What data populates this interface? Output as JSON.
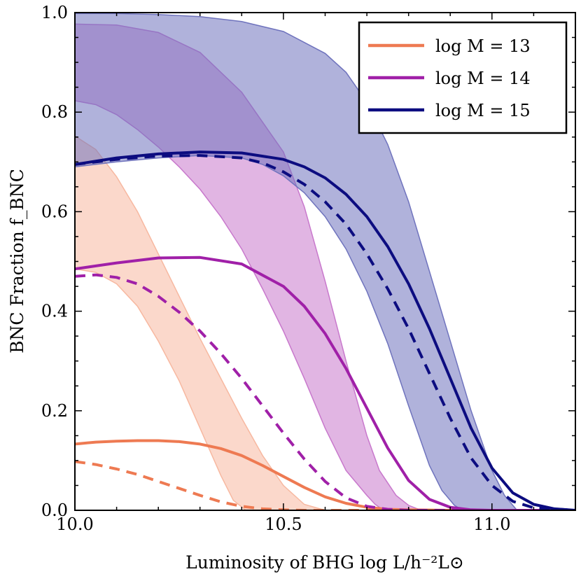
{
  "chart_data": {
    "type": "line",
    "title": "",
    "xlabel": "Luminosity of BHG log L/h⁻²L⊙",
    "ylabel": "BNC Fraction f_BNC",
    "xlim": [
      10.0,
      11.2
    ],
    "ylim": [
      0.0,
      1.0
    ],
    "x_ticks": [
      {
        "value": 10.0,
        "label": "10.0"
      },
      {
        "value": 10.5,
        "label": "10.5"
      },
      {
        "value": 11.0,
        "label": "11.0"
      }
    ],
    "y_ticks": [
      {
        "value": 0.0,
        "label": "0.0"
      },
      {
        "value": 0.2,
        "label": "0.2"
      },
      {
        "value": 0.4,
        "label": "0.4"
      },
      {
        "value": 0.6,
        "label": "0.6"
      },
      {
        "value": 0.8,
        "label": "0.8"
      },
      {
        "value": 1.0,
        "label": "1.0"
      }
    ],
    "legend_position": "top-right",
    "series": [
      {
        "name": "log M = 13",
        "color": "#ee7a52",
        "band_fill": "#f7b8a0",
        "solid": {
          "x": [
            10.0,
            10.05,
            10.1,
            10.15,
            10.2,
            10.25,
            10.3,
            10.35,
            10.4,
            10.45,
            10.5,
            10.55,
            10.6,
            10.65,
            10.7,
            10.75,
            10.8,
            10.9,
            11.0,
            11.1,
            11.2
          ],
          "y": [
            0.133,
            0.137,
            0.139,
            0.14,
            0.14,
            0.138,
            0.133,
            0.124,
            0.11,
            0.09,
            0.068,
            0.046,
            0.027,
            0.014,
            0.006,
            0.002,
            0.001,
            0.0,
            0.0,
            0.0,
            0.0
          ]
        },
        "dashed": {
          "x": [
            10.0,
            10.05,
            10.1,
            10.15,
            10.2,
            10.25,
            10.3,
            10.35,
            10.4,
            10.45,
            10.5,
            10.55,
            10.6,
            10.7,
            10.8,
            11.0,
            11.2
          ],
          "y": [
            0.098,
            0.092,
            0.083,
            0.072,
            0.058,
            0.044,
            0.03,
            0.017,
            0.008,
            0.003,
            0.001,
            0.0,
            0.0,
            0.0,
            0.0,
            0.0,
            0.0
          ]
        },
        "band_upper": {
          "x": [
            10.0,
            10.05,
            10.1,
            10.15,
            10.2,
            10.25,
            10.3,
            10.35,
            10.4,
            10.45,
            10.5,
            10.55,
            10.6
          ],
          "y": [
            0.752,
            0.725,
            0.67,
            0.6,
            0.515,
            0.43,
            0.345,
            0.265,
            0.185,
            0.11,
            0.05,
            0.012,
            0.0
          ]
        },
        "band_lower": {
          "x": [
            10.0,
            10.05,
            10.1,
            10.15,
            10.2,
            10.25,
            10.3,
            10.35,
            10.38,
            10.41
          ],
          "y": [
            0.485,
            0.478,
            0.455,
            0.41,
            0.34,
            0.26,
            0.165,
            0.07,
            0.02,
            0.0
          ]
        }
      },
      {
        "name": "log M = 14",
        "color": "#a020a8",
        "band_fill": "#c878cc",
        "solid": {
          "x": [
            10.0,
            10.1,
            10.2,
            10.3,
            10.4,
            10.5,
            10.55,
            10.6,
            10.65,
            10.7,
            10.75,
            10.8,
            10.85,
            10.9,
            10.95,
            11.0,
            11.1,
            11.2
          ],
          "y": [
            0.485,
            0.497,
            0.507,
            0.508,
            0.495,
            0.45,
            0.41,
            0.355,
            0.285,
            0.205,
            0.125,
            0.06,
            0.022,
            0.006,
            0.001,
            0.0,
            0.0,
            0.0
          ]
        },
        "dashed": {
          "x": [
            10.0,
            10.05,
            10.1,
            10.15,
            10.2,
            10.25,
            10.3,
            10.35,
            10.4,
            10.45,
            10.5,
            10.55,
            10.6,
            10.65,
            10.7,
            10.75,
            10.8,
            10.9,
            11.0,
            11.2
          ],
          "y": [
            0.47,
            0.473,
            0.468,
            0.455,
            0.43,
            0.398,
            0.36,
            0.315,
            0.265,
            0.21,
            0.155,
            0.103,
            0.058,
            0.025,
            0.008,
            0.002,
            0.0,
            0.0,
            0.0,
            0.0
          ]
        },
        "band_upper": {
          "x": [
            10.0,
            10.1,
            10.2,
            10.3,
            10.4,
            10.5,
            10.55,
            10.6,
            10.65,
            10.7,
            10.73,
            10.77,
            10.8,
            10.83
          ],
          "y": [
            0.977,
            0.975,
            0.96,
            0.92,
            0.84,
            0.72,
            0.61,
            0.46,
            0.3,
            0.15,
            0.08,
            0.03,
            0.01,
            0.0
          ]
        },
        "band_lower": {
          "x": [
            10.0,
            10.05,
            10.1,
            10.15,
            10.2,
            10.25,
            10.3,
            10.35,
            10.4,
            10.45,
            10.5,
            10.55,
            10.6,
            10.65,
            10.7,
            10.72,
            10.74
          ],
          "y": [
            0.823,
            0.815,
            0.795,
            0.765,
            0.73,
            0.69,
            0.645,
            0.59,
            0.525,
            0.445,
            0.36,
            0.265,
            0.165,
            0.08,
            0.03,
            0.012,
            0.0
          ]
        }
      },
      {
        "name": "log M = 15",
        "color": "#0c0c80",
        "band_fill": "#6f73bd",
        "solid": {
          "x": [
            10.0,
            10.1,
            10.2,
            10.3,
            10.4,
            10.5,
            10.55,
            10.6,
            10.65,
            10.7,
            10.75,
            10.8,
            10.85,
            10.9,
            10.95,
            11.0,
            11.05,
            11.1,
            11.15,
            11.2
          ],
          "y": [
            0.695,
            0.708,
            0.716,
            0.72,
            0.718,
            0.705,
            0.69,
            0.668,
            0.635,
            0.59,
            0.53,
            0.455,
            0.365,
            0.265,
            0.165,
            0.085,
            0.035,
            0.012,
            0.003,
            0.0
          ]
        },
        "dashed": {
          "x": [
            10.0,
            10.1,
            10.2,
            10.3,
            10.4,
            10.45,
            10.5,
            10.55,
            10.6,
            10.65,
            10.7,
            10.75,
            10.8,
            10.85,
            10.9,
            10.95,
            11.0,
            11.05,
            11.1,
            11.2
          ],
          "y": [
            0.695,
            0.705,
            0.712,
            0.713,
            0.708,
            0.698,
            0.68,
            0.655,
            0.62,
            0.575,
            0.515,
            0.445,
            0.365,
            0.275,
            0.185,
            0.105,
            0.05,
            0.018,
            0.005,
            0.0
          ]
        },
        "band_upper": {
          "x": [
            10.0,
            10.1,
            10.2,
            10.3,
            10.4,
            10.5,
            10.6,
            10.65,
            10.7,
            10.75,
            10.8,
            10.85,
            10.9,
            10.95,
            11.0,
            11.03,
            11.06
          ],
          "y": [
            0.998,
            0.998,
            0.996,
            0.992,
            0.982,
            0.962,
            0.918,
            0.88,
            0.82,
            0.735,
            0.62,
            0.48,
            0.34,
            0.2,
            0.08,
            0.03,
            0.0
          ]
        },
        "band_lower": {
          "x": [
            10.0,
            10.1,
            10.2,
            10.3,
            10.4,
            10.45,
            10.5,
            10.55,
            10.6,
            10.65,
            10.7,
            10.75,
            10.8,
            10.85,
            10.88,
            10.91,
            10.93
          ],
          "y": [
            0.69,
            0.7,
            0.708,
            0.713,
            0.708,
            0.695,
            0.672,
            0.638,
            0.59,
            0.525,
            0.44,
            0.335,
            0.21,
            0.09,
            0.04,
            0.01,
            0.0
          ]
        }
      }
    ]
  }
}
